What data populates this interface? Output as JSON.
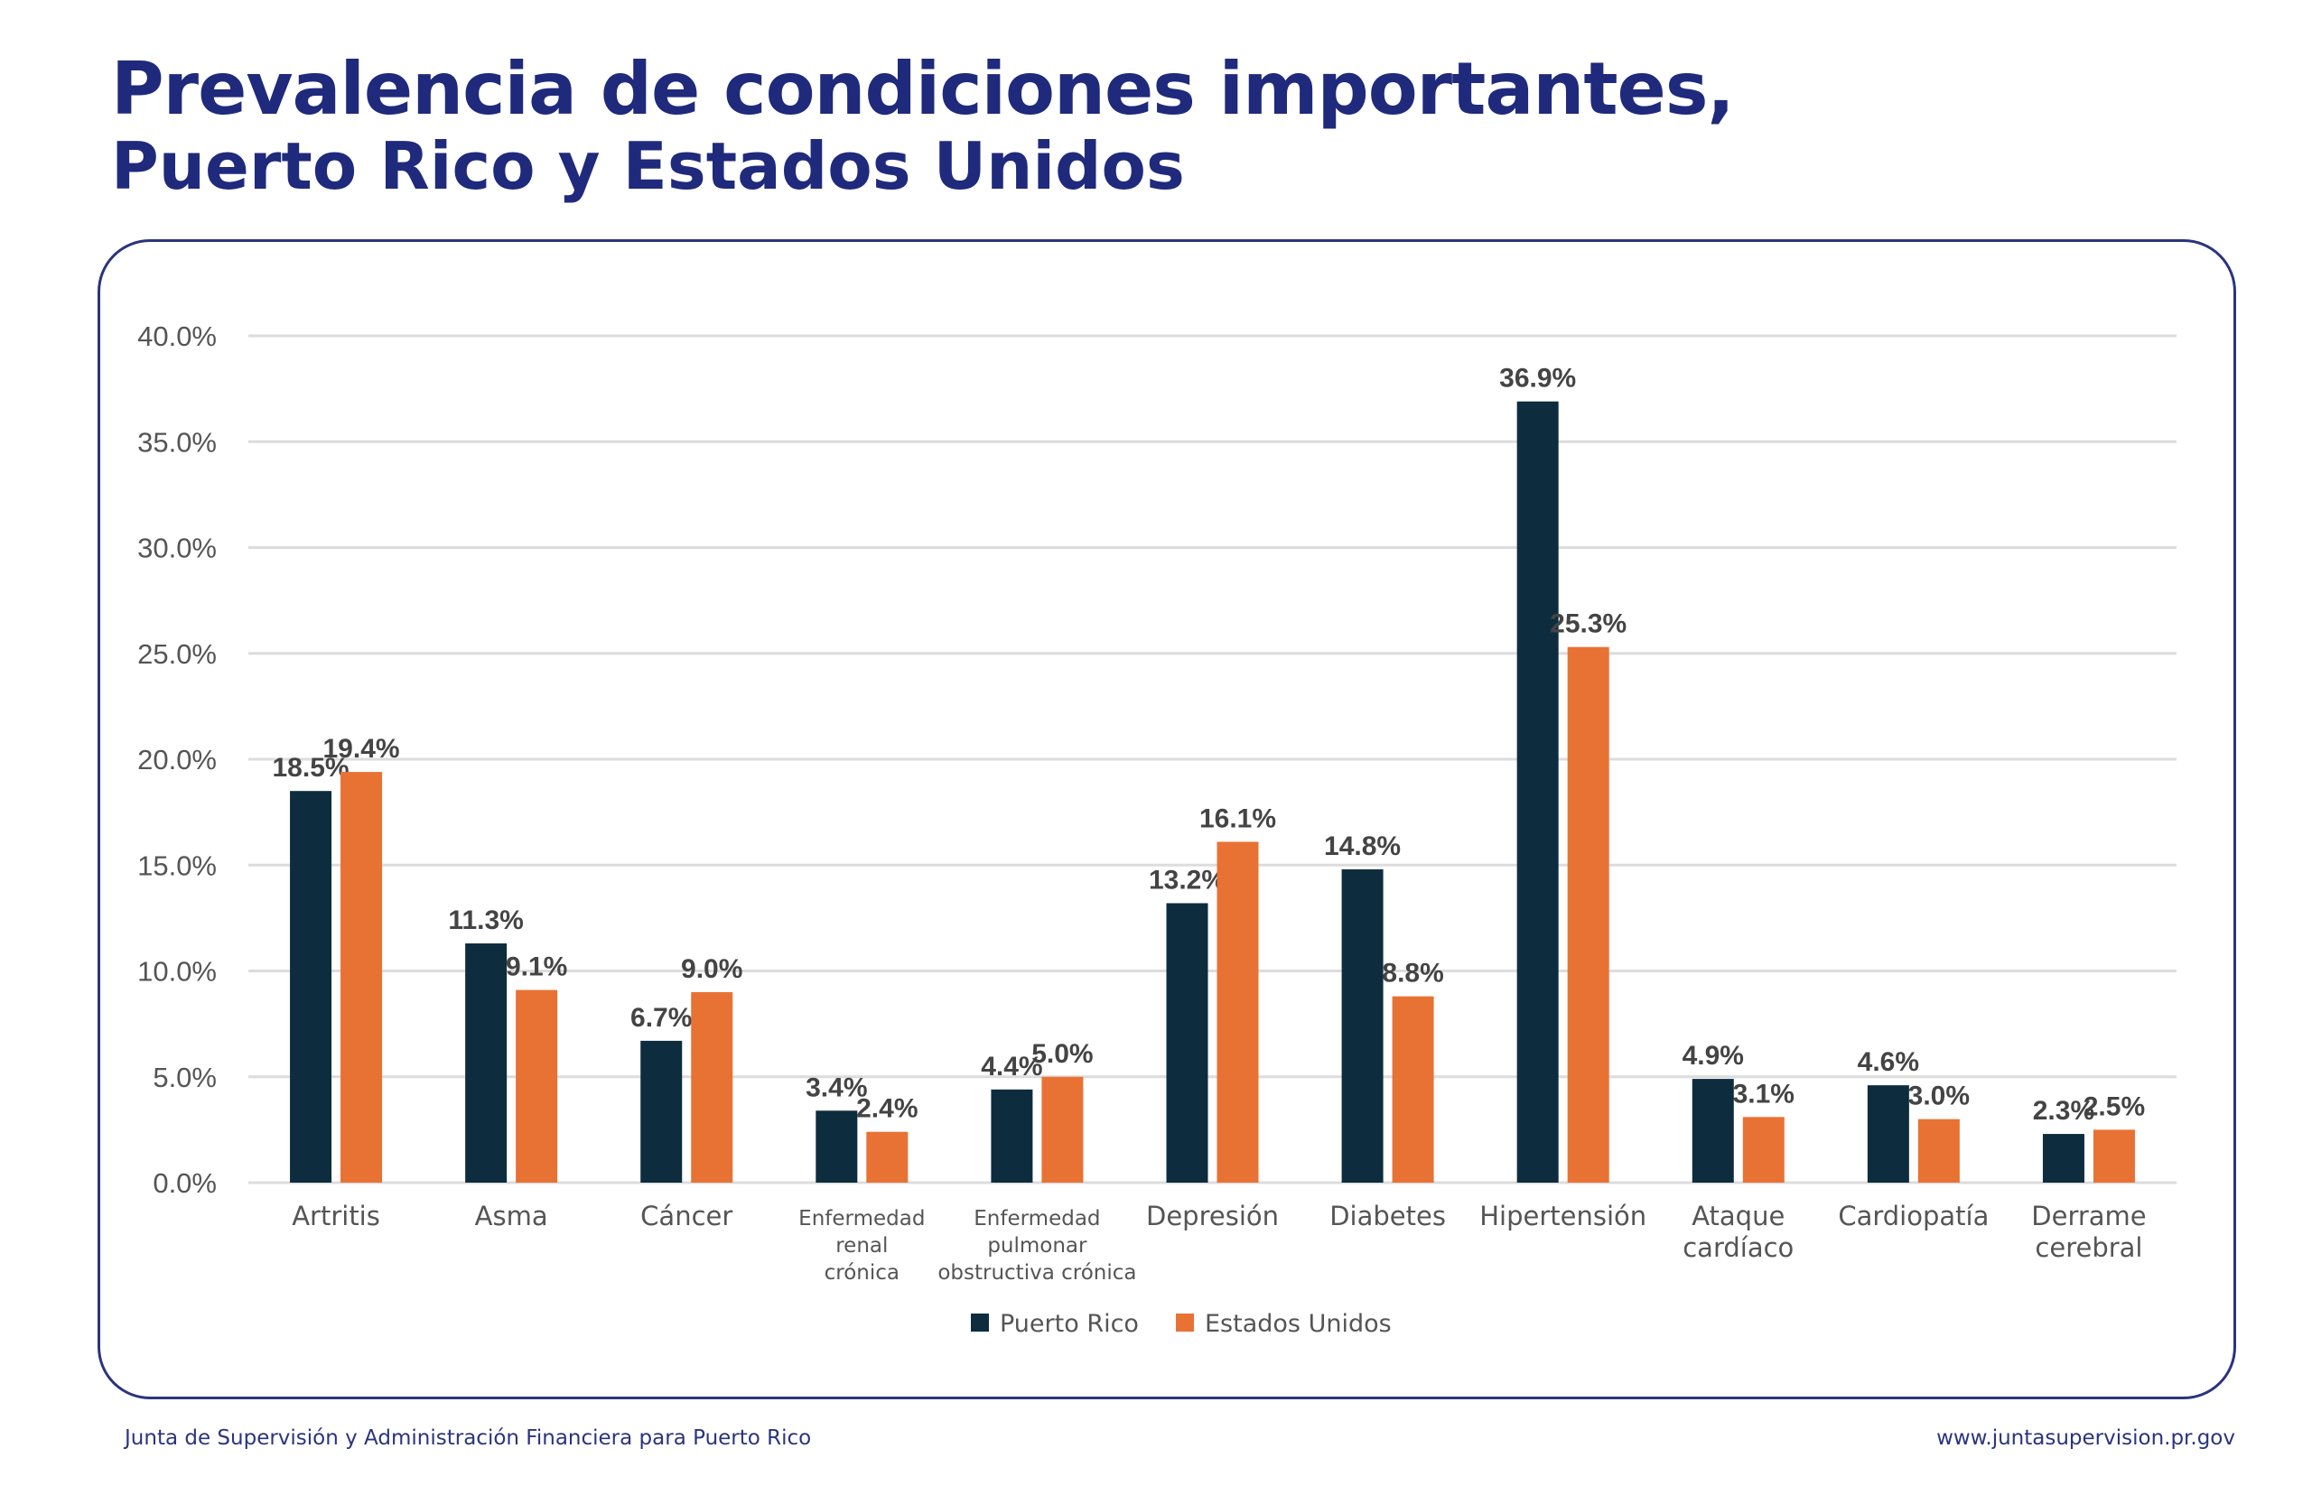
{
  "header": {
    "title": "Prevalencia de condiciones importantes,",
    "subtitle": "Puerto Rico y Estados Unidos"
  },
  "footer": {
    "left": "Junta de Supervisión y Administración Financiera para Puerto Rico",
    "right": "www.juntasupervision.pr.gov"
  },
  "chart_data": {
    "type": "bar",
    "ylim": [
      0,
      40
    ],
    "yticks": [
      "0.0%",
      "5.0%",
      "10.0%",
      "15.0%",
      "20.0%",
      "25.0%",
      "30.0%",
      "35.0%",
      "40.0%"
    ],
    "grid": true,
    "legend_position": "bottom",
    "categories": [
      [
        "Artritis"
      ],
      [
        "Asma"
      ],
      [
        "Cáncer"
      ],
      [
        "Enfermedad",
        "renal",
        "crónica"
      ],
      [
        "Enfermedad",
        "pulmonar",
        "obstructiva crónica"
      ],
      [
        "Depresión"
      ],
      [
        "Diabetes"
      ],
      [
        "Hipertensión"
      ],
      [
        "Ataque",
        "cardíaco"
      ],
      [
        "Cardiopatía"
      ],
      [
        "Derrame",
        "cerebral"
      ]
    ],
    "series": [
      {
        "name": "Puerto Rico",
        "color": "#0d2d3e",
        "values": [
          18.5,
          11.3,
          6.7,
          3.4,
          4.4,
          13.2,
          14.8,
          36.9,
          4.9,
          4.6,
          2.3
        ],
        "labels": [
          "18.5%",
          "11.3%",
          "6.7%",
          "3.4%",
          "4.4%",
          "13.2%",
          "14.8%",
          "36.9%",
          "4.9%",
          "4.6%",
          "2.3%"
        ]
      },
      {
        "name": "Estados Unidos",
        "color": "#e87234",
        "values": [
          19.4,
          9.1,
          9.0,
          2.4,
          5.0,
          16.1,
          8.8,
          25.3,
          3.1,
          3.0,
          2.5
        ],
        "labels": [
          "19.4%",
          "9.1%",
          "9.0%",
          "2.4%",
          "5.0%",
          "16.1%",
          "8.8%",
          "25.3%",
          "3.1%",
          "3.0%",
          "2.5%"
        ]
      }
    ]
  }
}
